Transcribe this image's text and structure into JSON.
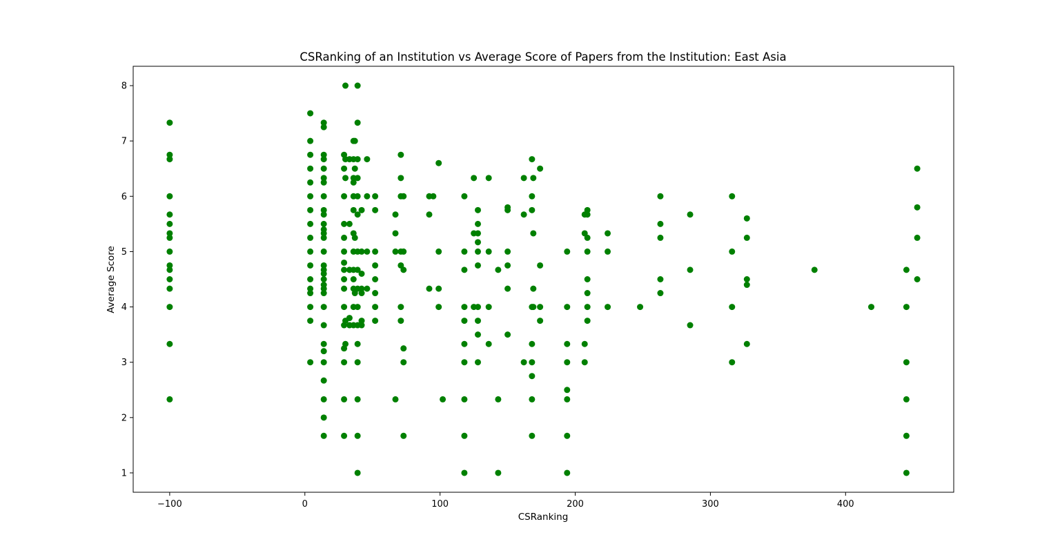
{
  "chart_data": {
    "type": "scatter",
    "title": "CSRanking of an Institution vs Average Score of Papers from the Institution: East Asia",
    "xlabel": "CSRanking",
    "ylabel": "Average Score",
    "xlim": [
      -127,
      480
    ],
    "ylim": [
      0.65,
      8.35
    ],
    "x_ticks": [
      -100,
      0,
      100,
      200,
      300,
      400
    ],
    "y_ticks": [
      1,
      2,
      3,
      4,
      5,
      6,
      7,
      8
    ],
    "x_tick_labels": [
      "−100",
      "0",
      "100",
      "200",
      "300",
      "400"
    ],
    "y_tick_labels": [
      "1",
      "2",
      "3",
      "4",
      "5",
      "6",
      "7",
      "8"
    ],
    "grid": false,
    "legend": "none",
    "marker_color": "#008000",
    "points": [
      [
        -100,
        7.33
      ],
      [
        -100,
        6.75
      ],
      [
        -100,
        6.67
      ],
      [
        -100,
        6.0
      ],
      [
        -100,
        5.67
      ],
      [
        -100,
        5.5
      ],
      [
        -100,
        5.33
      ],
      [
        -100,
        5.25
      ],
      [
        -100,
        5.0
      ],
      [
        -100,
        4.75
      ],
      [
        -100,
        4.67
      ],
      [
        -100,
        4.5
      ],
      [
        -100,
        4.33
      ],
      [
        -100,
        4.0
      ],
      [
        -100,
        3.33
      ],
      [
        -100,
        2.33
      ],
      [
        4,
        7.5
      ],
      [
        4,
        7.0
      ],
      [
        4,
        6.75
      ],
      [
        4,
        6.5
      ],
      [
        4,
        6.25
      ],
      [
        4,
        6.0
      ],
      [
        4,
        5.75
      ],
      [
        4,
        5.5
      ],
      [
        4,
        5.25
      ],
      [
        4,
        5.0
      ],
      [
        4,
        4.75
      ],
      [
        4,
        4.5
      ],
      [
        4,
        4.33
      ],
      [
        4,
        4.25
      ],
      [
        4,
        4.0
      ],
      [
        4,
        3.75
      ],
      [
        4,
        3.0
      ],
      [
        14,
        7.33
      ],
      [
        14,
        7.25
      ],
      [
        14,
        6.75
      ],
      [
        14,
        6.67
      ],
      [
        14,
        6.5
      ],
      [
        14,
        6.33
      ],
      [
        14,
        6.25
      ],
      [
        14,
        6.0
      ],
      [
        14,
        5.75
      ],
      [
        14,
        5.67
      ],
      [
        14,
        5.5
      ],
      [
        14,
        5.4
      ],
      [
        14,
        5.33
      ],
      [
        14,
        5.25
      ],
      [
        14,
        5.0
      ],
      [
        14,
        4.75
      ],
      [
        14,
        4.67
      ],
      [
        14,
        4.6
      ],
      [
        14,
        4.5
      ],
      [
        14,
        4.4
      ],
      [
        14,
        4.33
      ],
      [
        14,
        4.25
      ],
      [
        14,
        4.0
      ],
      [
        14,
        3.67
      ],
      [
        14,
        3.33
      ],
      [
        14,
        3.2
      ],
      [
        14,
        3.0
      ],
      [
        14,
        2.67
      ],
      [
        14,
        2.33
      ],
      [
        14,
        2.0
      ],
      [
        14,
        1.67
      ],
      [
        29,
        6.75
      ],
      [
        29,
        6.5
      ],
      [
        29,
        6.0
      ],
      [
        29,
        5.5
      ],
      [
        29,
        5.25
      ],
      [
        29,
        5.0
      ],
      [
        29,
        4.8
      ],
      [
        29,
        4.67
      ],
      [
        29,
        4.5
      ],
      [
        29,
        4.33
      ],
      [
        29,
        4.0
      ],
      [
        29,
        3.67
      ],
      [
        29,
        3.25
      ],
      [
        29,
        3.0
      ],
      [
        29,
        2.33
      ],
      [
        29,
        1.67
      ],
      [
        30,
        8.0
      ],
      [
        30,
        6.67
      ],
      [
        30,
        6.33
      ],
      [
        30,
        3.75
      ],
      [
        30,
        3.33
      ],
      [
        33,
        6.67
      ],
      [
        33,
        5.5
      ],
      [
        33,
        4.67
      ],
      [
        33,
        3.8
      ],
      [
        33,
        3.67
      ],
      [
        36,
        7.0
      ],
      [
        36,
        6.67
      ],
      [
        36,
        6.33
      ],
      [
        36,
        6.25
      ],
      [
        36,
        6.0
      ],
      [
        36,
        5.75
      ],
      [
        36,
        5.33
      ],
      [
        36,
        5.0
      ],
      [
        36,
        4.67
      ],
      [
        36,
        4.5
      ],
      [
        36,
        4.33
      ],
      [
        36,
        4.0
      ],
      [
        36,
        3.67
      ],
      [
        37,
        7.0
      ],
      [
        37,
        6.5
      ],
      [
        37,
        5.25
      ],
      [
        37,
        4.25
      ],
      [
        39,
        8.0
      ],
      [
        39,
        7.33
      ],
      [
        39,
        6.67
      ],
      [
        39,
        6.33
      ],
      [
        39,
        6.0
      ],
      [
        39,
        5.67
      ],
      [
        39,
        5.0
      ],
      [
        39,
        4.67
      ],
      [
        39,
        4.33
      ],
      [
        39,
        4.0
      ],
      [
        39,
        3.67
      ],
      [
        39,
        3.33
      ],
      [
        39,
        3.0
      ],
      [
        39,
        2.33
      ],
      [
        39,
        1.67
      ],
      [
        39,
        1.0
      ],
      [
        42,
        5.75
      ],
      [
        42,
        5.0
      ],
      [
        42,
        4.6
      ],
      [
        42,
        4.33
      ],
      [
        42,
        4.25
      ],
      [
        42,
        3.75
      ],
      [
        42,
        3.67
      ],
      [
        46,
        6.67
      ],
      [
        46,
        6.0
      ],
      [
        46,
        5.0
      ],
      [
        46,
        4.33
      ],
      [
        52,
        6.0
      ],
      [
        52,
        5.75
      ],
      [
        52,
        5.0
      ],
      [
        52,
        4.75
      ],
      [
        52,
        4.5
      ],
      [
        52,
        4.25
      ],
      [
        52,
        4.0
      ],
      [
        52,
        3.75
      ],
      [
        67,
        5.67
      ],
      [
        67,
        5.33
      ],
      [
        67,
        5.0
      ],
      [
        67,
        2.33
      ],
      [
        71,
        6.75
      ],
      [
        71,
        6.33
      ],
      [
        71,
        6.0
      ],
      [
        71,
        5.0
      ],
      [
        71,
        4.75
      ],
      [
        71,
        4.0
      ],
      [
        71,
        3.75
      ],
      [
        73,
        6.0
      ],
      [
        73,
        5.0
      ],
      [
        73,
        4.67
      ],
      [
        73,
        3.25
      ],
      [
        73,
        3.0
      ],
      [
        73,
        1.67
      ],
      [
        92,
        6.0
      ],
      [
        92,
        5.67
      ],
      [
        92,
        4.33
      ],
      [
        95,
        6.0
      ],
      [
        99,
        6.6
      ],
      [
        99,
        5.0
      ],
      [
        99,
        4.33
      ],
      [
        99,
        4.0
      ],
      [
        102,
        2.33
      ],
      [
        118,
        6.0
      ],
      [
        118,
        5.0
      ],
      [
        118,
        4.67
      ],
      [
        118,
        4.0
      ],
      [
        118,
        3.75
      ],
      [
        118,
        3.33
      ],
      [
        118,
        3.0
      ],
      [
        118,
        2.33
      ],
      [
        118,
        1.67
      ],
      [
        118,
        1.0
      ],
      [
        125,
        6.33
      ],
      [
        125,
        5.33
      ],
      [
        125,
        4.0
      ],
      [
        128,
        5.75
      ],
      [
        128,
        5.5
      ],
      [
        128,
        5.33
      ],
      [
        128,
        5.17
      ],
      [
        128,
        5.0
      ],
      [
        128,
        4.75
      ],
      [
        128,
        4.0
      ],
      [
        128,
        3.75
      ],
      [
        128,
        3.5
      ],
      [
        128,
        3.0
      ],
      [
        136,
        6.33
      ],
      [
        136,
        5.0
      ],
      [
        136,
        4.0
      ],
      [
        136,
        3.33
      ],
      [
        143,
        4.67
      ],
      [
        143,
        2.33
      ],
      [
        143,
        1.0
      ],
      [
        150,
        5.8
      ],
      [
        150,
        5.75
      ],
      [
        150,
        5.0
      ],
      [
        150,
        4.75
      ],
      [
        150,
        4.33
      ],
      [
        150,
        3.5
      ],
      [
        162,
        6.33
      ],
      [
        162,
        5.67
      ],
      [
        162,
        3.0
      ],
      [
        168,
        6.67
      ],
      [
        168,
        6.0
      ],
      [
        168,
        5.75
      ],
      [
        168,
        4.0
      ],
      [
        168,
        3.33
      ],
      [
        168,
        3.0
      ],
      [
        168,
        2.75
      ],
      [
        168,
        2.33
      ],
      [
        168,
        1.67
      ],
      [
        169,
        6.33
      ],
      [
        169,
        5.33
      ],
      [
        169,
        4.33
      ],
      [
        169,
        4.0
      ],
      [
        174,
        6.5
      ],
      [
        174,
        4.75
      ],
      [
        174,
        4.0
      ],
      [
        174,
        3.75
      ],
      [
        194,
        5.0
      ],
      [
        194,
        4.0
      ],
      [
        194,
        3.33
      ],
      [
        194,
        3.0
      ],
      [
        194,
        2.5
      ],
      [
        194,
        2.33
      ],
      [
        194,
        1.67
      ],
      [
        194,
        1.0
      ],
      [
        207,
        5.67
      ],
      [
        207,
        5.33
      ],
      [
        207,
        3.33
      ],
      [
        207,
        3.0
      ],
      [
        209,
        5.75
      ],
      [
        209,
        5.67
      ],
      [
        209,
        5.25
      ],
      [
        209,
        5.0
      ],
      [
        209,
        4.5
      ],
      [
        209,
        4.25
      ],
      [
        209,
        4.0
      ],
      [
        209,
        3.75
      ],
      [
        224,
        5.33
      ],
      [
        224,
        5.0
      ],
      [
        224,
        4.0
      ],
      [
        248,
        4.0
      ],
      [
        263,
        6.0
      ],
      [
        263,
        5.5
      ],
      [
        263,
        5.25
      ],
      [
        263,
        4.5
      ],
      [
        263,
        4.25
      ],
      [
        285,
        5.67
      ],
      [
        285,
        4.67
      ],
      [
        285,
        3.67
      ],
      [
        316,
        6.0
      ],
      [
        316,
        5.0
      ],
      [
        316,
        4.0
      ],
      [
        316,
        3.0
      ],
      [
        327,
        5.6
      ],
      [
        327,
        5.25
      ],
      [
        327,
        4.5
      ],
      [
        327,
        4.4
      ],
      [
        327,
        3.33
      ],
      [
        377,
        4.67
      ],
      [
        419,
        4.0
      ],
      [
        445,
        4.67
      ],
      [
        445,
        4.0
      ],
      [
        445,
        3.0
      ],
      [
        445,
        2.33
      ],
      [
        445,
        1.67
      ],
      [
        445,
        1.0
      ],
      [
        453,
        6.5
      ],
      [
        453,
        5.8
      ],
      [
        453,
        5.25
      ],
      [
        453,
        4.5
      ]
    ]
  }
}
